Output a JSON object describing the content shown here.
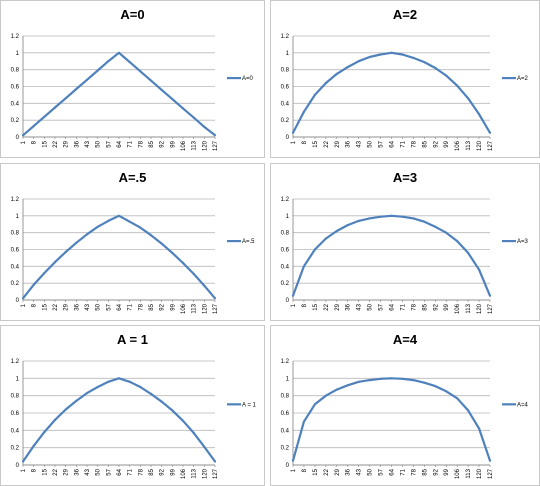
{
  "colors": {
    "series": "#4f81bd",
    "grid": "#b9b9b9",
    "axis": "#7f7f7f"
  },
  "x_tick_labels": [
    "1",
    "8",
    "15",
    "22",
    "29",
    "36",
    "43",
    "50",
    "57",
    "64",
    "71",
    "78",
    "85",
    "92",
    "99",
    "106",
    "113",
    "120",
    "127"
  ],
  "y_tick_labels": [
    "0",
    "0.2",
    "0.4",
    "0.6",
    "0.8",
    "1",
    "1.2"
  ],
  "chart_data": [
    {
      "type": "line",
      "title": "A=0",
      "x": [
        1,
        8,
        15,
        22,
        29,
        36,
        43,
        50,
        57,
        64,
        71,
        78,
        85,
        92,
        99,
        106,
        113,
        120,
        127
      ],
      "ylim": [
        0,
        1.2
      ],
      "legend_position": "right",
      "series": [
        {
          "name": "A=0",
          "values": [
            0.02,
            0.13,
            0.24,
            0.35,
            0.46,
            0.57,
            0.68,
            0.79,
            0.9,
            1.0,
            0.89,
            0.78,
            0.67,
            0.56,
            0.45,
            0.34,
            0.23,
            0.12,
            0.02
          ]
        }
      ]
    },
    {
      "type": "line",
      "title": "A=2",
      "x": [
        1,
        8,
        15,
        22,
        29,
        36,
        43,
        50,
        57,
        64,
        71,
        78,
        85,
        92,
        99,
        106,
        113,
        120,
        127
      ],
      "ylim": [
        0,
        1.2
      ],
      "legend_position": "right",
      "series": [
        {
          "name": "A=2",
          "values": [
            0.05,
            0.3,
            0.5,
            0.64,
            0.75,
            0.83,
            0.9,
            0.95,
            0.98,
            1.0,
            0.98,
            0.94,
            0.89,
            0.82,
            0.73,
            0.61,
            0.46,
            0.27,
            0.05
          ]
        }
      ]
    },
    {
      "type": "line",
      "title": "A=.5",
      "x": [
        1,
        8,
        15,
        22,
        29,
        36,
        43,
        50,
        57,
        64,
        71,
        78,
        85,
        92,
        99,
        106,
        113,
        120,
        127
      ],
      "ylim": [
        0,
        1.2
      ],
      "legend_position": "right",
      "series": [
        {
          "name": "A=.5",
          "values": [
            0.02,
            0.18,
            0.32,
            0.45,
            0.57,
            0.68,
            0.78,
            0.87,
            0.94,
            1.0,
            0.93,
            0.86,
            0.77,
            0.67,
            0.56,
            0.44,
            0.31,
            0.17,
            0.02
          ]
        }
      ]
    },
    {
      "type": "line",
      "title": "A=3",
      "x": [
        1,
        8,
        15,
        22,
        29,
        36,
        43,
        50,
        57,
        64,
        71,
        78,
        85,
        92,
        99,
        106,
        113,
        120,
        127
      ],
      "ylim": [
        0,
        1.2
      ],
      "legend_position": "right",
      "series": [
        {
          "name": "A=3",
          "values": [
            0.05,
            0.4,
            0.6,
            0.73,
            0.82,
            0.89,
            0.94,
            0.97,
            0.99,
            1.0,
            0.99,
            0.97,
            0.93,
            0.87,
            0.8,
            0.7,
            0.56,
            0.36,
            0.05
          ]
        }
      ]
    },
    {
      "type": "line",
      "title": "A = 1",
      "x": [
        1,
        8,
        15,
        22,
        29,
        36,
        43,
        50,
        57,
        64,
        71,
        78,
        85,
        92,
        99,
        106,
        113,
        120,
        127
      ],
      "ylim": [
        0,
        1.2
      ],
      "legend_position": "right",
      "series": [
        {
          "name": "A = 1",
          "values": [
            0.04,
            0.22,
            0.38,
            0.52,
            0.64,
            0.74,
            0.83,
            0.9,
            0.96,
            1.0,
            0.96,
            0.9,
            0.82,
            0.73,
            0.63,
            0.51,
            0.37,
            0.21,
            0.04
          ]
        }
      ]
    },
    {
      "type": "line",
      "title": "A=4",
      "x": [
        1,
        8,
        15,
        22,
        29,
        36,
        43,
        50,
        57,
        64,
        71,
        78,
        85,
        92,
        99,
        106,
        113,
        120,
        127
      ],
      "ylim": [
        0,
        1.2
      ],
      "legend_position": "right",
      "series": [
        {
          "name": "A=4",
          "values": [
            0.05,
            0.5,
            0.7,
            0.8,
            0.87,
            0.92,
            0.96,
            0.98,
            0.995,
            1.0,
            0.995,
            0.98,
            0.95,
            0.91,
            0.85,
            0.77,
            0.63,
            0.42,
            0.05
          ]
        }
      ]
    }
  ]
}
